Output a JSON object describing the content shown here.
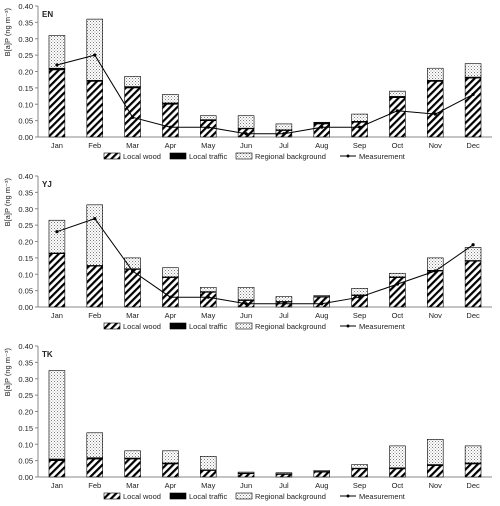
{
  "colors": {
    "bar_stroke": "#000000",
    "axis": "#888888",
    "measurement": "#000000",
    "background": "#ffffff"
  },
  "chart_data": [
    {
      "type": "bar",
      "title": "EN",
      "ylabel": "B[a]P (ng m⁻³)",
      "ylim": [
        0,
        0.4
      ],
      "yticks": [
        "0.00",
        "0.05",
        "0.10",
        "0.15",
        "0.20",
        "0.25",
        "0.30",
        "0.35",
        "0.40"
      ],
      "categories": [
        "Jan",
        "Feb",
        "Mar",
        "Apr",
        "May",
        "Jun",
        "Jul",
        "Aug",
        "Sep",
        "Oct",
        "Nov",
        "Dec"
      ],
      "stacked": true,
      "series": [
        {
          "name": "Local wood",
          "pattern": "diagonal-hatch",
          "values": [
            0.205,
            0.17,
            0.15,
            0.1,
            0.05,
            0.025,
            0.02,
            0.04,
            0.045,
            0.12,
            0.17,
            0.18
          ]
        },
        {
          "name": "Local traffic",
          "pattern": "solid-black",
          "values": [
            0.005,
            0.003,
            0.004,
            0.004,
            0.003,
            0.002,
            0.002,
            0.003,
            0.003,
            0.004,
            0.003,
            0.003
          ]
        },
        {
          "name": "Regional background",
          "pattern": "dotted",
          "values": [
            0.1,
            0.187,
            0.031,
            0.026,
            0.012,
            0.038,
            0.018,
            0.002,
            0.022,
            0.016,
            0.037,
            0.041
          ]
        }
      ],
      "line": {
        "name": "Measurement",
        "values": [
          0.22,
          0.25,
          0.06,
          0.03,
          0.03,
          0.01,
          0.01,
          0.03,
          0.03,
          0.08,
          0.07,
          0.13
        ]
      },
      "legend": "bottom"
    },
    {
      "type": "bar",
      "title": "YJ",
      "ylabel": "B[a]P (ng m⁻³)",
      "ylim": [
        0,
        0.4
      ],
      "yticks": [
        "0.00",
        "0.05",
        "0.10",
        "0.15",
        "0.20",
        "0.25",
        "0.30",
        "0.35",
        "0.40"
      ],
      "categories": [
        "Jan",
        "Feb",
        "Mar",
        "Apr",
        "May",
        "Jun",
        "Jul",
        "Aug",
        "Sep",
        "Oct",
        "Nov",
        "Dec"
      ],
      "stacked": true,
      "series": [
        {
          "name": "Local wood",
          "pattern": "diagonal-hatch",
          "values": [
            0.163,
            0.125,
            0.115,
            0.09,
            0.045,
            0.02,
            0.015,
            0.03,
            0.035,
            0.09,
            0.11,
            0.14
          ]
        },
        {
          "name": "Local traffic",
          "pattern": "solid-black",
          "values": [
            0.002,
            0.002,
            0.002,
            0.002,
            0.002,
            0.002,
            0.002,
            0.002,
            0.002,
            0.002,
            0.002,
            0.002
          ]
        },
        {
          "name": "Regional background",
          "pattern": "dotted",
          "values": [
            0.1,
            0.185,
            0.033,
            0.028,
            0.013,
            0.038,
            0.015,
            0.003,
            0.02,
            0.011,
            0.038,
            0.04
          ]
        }
      ],
      "line": {
        "name": "Measurement",
        "values": [
          0.23,
          0.27,
          0.11,
          0.03,
          0.03,
          0.01,
          0.01,
          0.01,
          0.03,
          0.07,
          0.11,
          0.19
        ]
      },
      "legend": "bottom"
    },
    {
      "type": "bar",
      "title": "TK",
      "ylabel": "B[a]P (ng m⁻³)",
      "ylim": [
        0,
        0.4
      ],
      "yticks": [
        "0.00",
        "0.05",
        "0.10",
        "0.15",
        "0.20",
        "0.25",
        "0.30",
        "0.35",
        "0.40"
      ],
      "categories": [
        "Jan",
        "Feb",
        "Mar",
        "Apr",
        "May",
        "Jun",
        "Jul",
        "Aug",
        "Sep",
        "Oct",
        "Nov",
        "Dec"
      ],
      "stacked": true,
      "series": [
        {
          "name": "Local wood",
          "pattern": "diagonal-hatch",
          "values": [
            0.05,
            0.055,
            0.055,
            0.04,
            0.02,
            0.01,
            0.008,
            0.015,
            0.025,
            0.025,
            0.035,
            0.04
          ]
        },
        {
          "name": "Local traffic",
          "pattern": "solid-black",
          "values": [
            0.005,
            0.004,
            0.003,
            0.003,
            0.002,
            0.002,
            0.002,
            0.002,
            0.002,
            0.003,
            0.003,
            0.003
          ]
        },
        {
          "name": "Regional background",
          "pattern": "dotted",
          "values": [
            0.27,
            0.076,
            0.022,
            0.037,
            0.041,
            0.003,
            0.003,
            0.003,
            0.011,
            0.067,
            0.077,
            0.052
          ]
        }
      ],
      "line": {
        "name": "Measurement",
        "values": []
      },
      "legend": "bottom"
    }
  ]
}
